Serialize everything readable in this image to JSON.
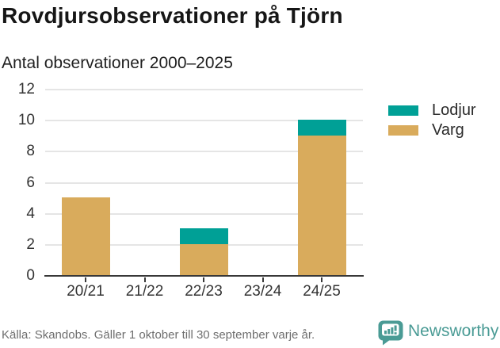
{
  "title": "Rovdjursobservationer på Tjörn",
  "subtitle": "Antal observationer 2000–2025",
  "legend": {
    "items": [
      {
        "label": "Lodjur",
        "color": "#00a096"
      },
      {
        "label": "Varg",
        "color": "#d9ab5c"
      }
    ]
  },
  "footer": {
    "source": "Källa: Skandobs. Gäller 1 oktober till 30 september varje år."
  },
  "logo": {
    "text": "Newsworthy",
    "color": "#4a9b95"
  },
  "colors": {
    "lodjur": "#00a096",
    "varg": "#d9ab5c",
    "gridline": "#e5e5e5",
    "axis": "#383838",
    "tick_text": "#333333",
    "muted_text": "#6e6e6e"
  },
  "chart_data": {
    "type": "bar",
    "stacked": true,
    "title": "Rovdjursobservationer på Tjörn",
    "subtitle": "Antal observationer 2000–2025",
    "categories": [
      "20/21",
      "21/22",
      "22/23",
      "23/24",
      "24/25"
    ],
    "series": [
      {
        "name": "Varg",
        "color": "#d9ab5c",
        "values": [
          5,
          0,
          2,
          0,
          9
        ]
      },
      {
        "name": "Lodjur",
        "color": "#00a096",
        "values": [
          0,
          0,
          1,
          0,
          1
        ]
      }
    ],
    "totals": [
      5,
      0,
      3,
      0,
      10
    ],
    "xlabel": "",
    "ylabel": "Antal observationer",
    "ylim": [
      0,
      12
    ],
    "yticks": [
      0,
      2,
      4,
      6,
      8,
      10,
      12
    ],
    "grid": true,
    "legend_position": "right"
  }
}
